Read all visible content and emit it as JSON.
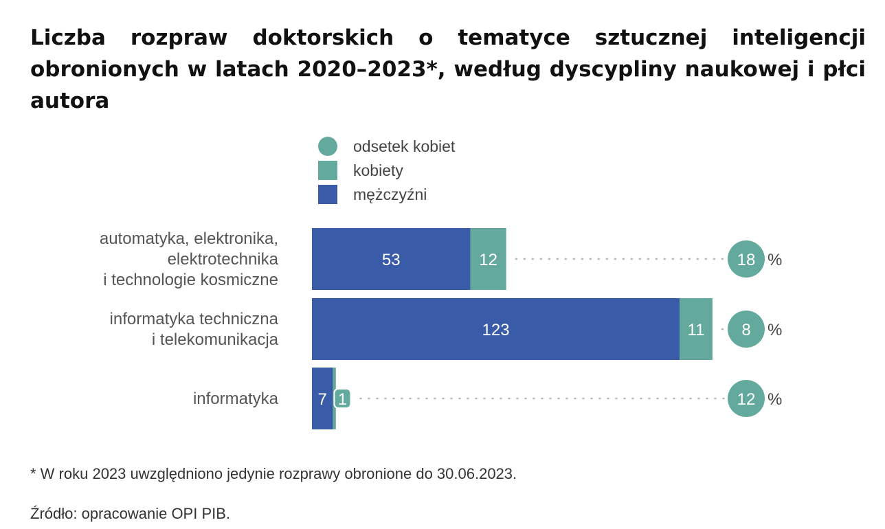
{
  "title": "Liczba rozpraw doktorskich o tematyce sztucznej inteligencji obronionych w latach 2020–2023*, według dyscypliny naukowej i płci autora",
  "footnote": "* W roku 2023 uwzględniono jedynie rozprawy obronione do 30.06.2023.",
  "source": "Źródło: opracowanie OPI PIB.",
  "colors": {
    "men": "#3a5ca8",
    "women": "#64a99d",
    "dots": "#b8b8b8"
  },
  "chart_data": {
    "type": "bar",
    "orientation": "horizontal",
    "stacked": true,
    "legend": [
      {
        "label": "odsetek kobiet",
        "shape": "circle",
        "color": "#64a99d"
      },
      {
        "label": "kobiety",
        "shape": "square",
        "color": "#64a99d"
      },
      {
        "label": "mężczyźni",
        "shape": "square",
        "color": "#3a5ca8"
      }
    ],
    "legend_position": "top",
    "categories": [
      [
        "automatyka, elektronika,",
        "elektrotechnika",
        "i technologie kosmiczne"
      ],
      [
        "informatyka techniczna",
        "i telekomunikacja"
      ],
      [
        "informatyka"
      ]
    ],
    "series": [
      {
        "name": "mężczyźni",
        "color": "#3a5ca8",
        "values": [
          53,
          123,
          7
        ]
      },
      {
        "name": "kobiety",
        "color": "#64a99d",
        "values": [
          12,
          11,
          1
        ]
      }
    ],
    "share_women": {
      "name": "odsetek kobiet",
      "values": [
        18,
        8,
        12
      ],
      "unit": "%"
    }
  }
}
